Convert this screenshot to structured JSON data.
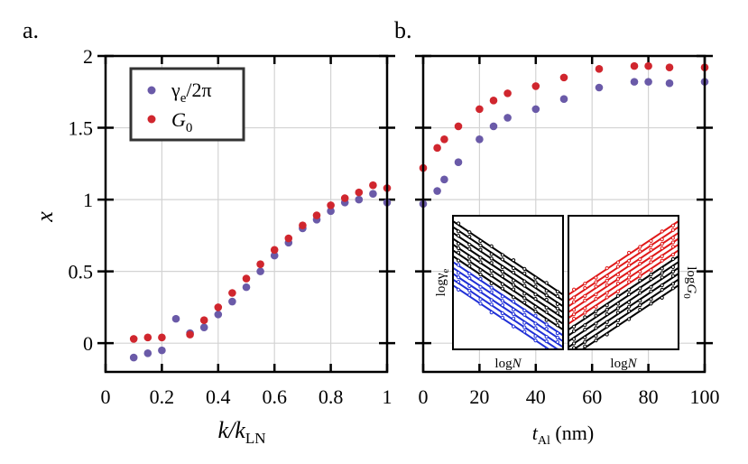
{
  "colors": {
    "gamma": "#6a5aa8",
    "g0": "#d0262e",
    "grid": "#d3d3d3",
    "inset_blue": "#1f2fd6",
    "inset_red": "#e01818"
  },
  "chart_data": [
    {
      "panel": "a.",
      "type": "scatter",
      "xlabel_main": "k/k",
      "xlabel_sub": "LN",
      "ylabel": "x",
      "xlim": [
        0,
        1
      ],
      "ylim": [
        -0.2,
        2
      ],
      "xticks": [
        "0",
        "0.2",
        "0.4",
        "0.6",
        "0.8",
        "1"
      ],
      "xtick_values": [
        0,
        0.2,
        0.4,
        0.6,
        0.8,
        1
      ],
      "yticks": [
        "0",
        "0.5",
        "1",
        "1.5",
        "2"
      ],
      "ytick_values": [
        0,
        0.5,
        1,
        1.5,
        2
      ],
      "grid": true,
      "legend": {
        "position": "top-left",
        "entries": [
          {
            "series": 0,
            "label": "γ",
            "sub": "e",
            "suffix": "/2π"
          },
          {
            "series": 1,
            "label": "G",
            "sub": "0",
            "suffix": ""
          }
        ]
      },
      "series": [
        {
          "name": "γe/2π",
          "x": [
            0.1,
            0.15,
            0.2,
            0.25,
            0.3,
            0.35,
            0.4,
            0.45,
            0.5,
            0.55,
            0.6,
            0.65,
            0.7,
            0.75,
            0.8,
            0.85,
            0.9,
            0.95,
            1.0
          ],
          "y": [
            -0.1,
            -0.07,
            -0.05,
            0.17,
            0.07,
            0.11,
            0.2,
            0.29,
            0.39,
            0.5,
            0.61,
            0.7,
            0.8,
            0.86,
            0.92,
            0.98,
            1.0,
            1.04,
            0.98
          ]
        },
        {
          "name": "G0",
          "x": [
            0.1,
            0.15,
            0.2,
            0.3,
            0.35,
            0.4,
            0.45,
            0.5,
            0.55,
            0.6,
            0.65,
            0.7,
            0.75,
            0.8,
            0.85,
            0.9,
            0.95,
            1.0
          ],
          "y": [
            0.03,
            0.04,
            0.04,
            0.06,
            0.16,
            0.25,
            0.35,
            0.45,
            0.55,
            0.65,
            0.73,
            0.82,
            0.89,
            0.96,
            1.01,
            1.05,
            1.1,
            1.08
          ]
        }
      ]
    },
    {
      "panel": "b.",
      "type": "scatter",
      "xlabel_main": "t",
      "xlabel_sub": "Al",
      "xlabel_unit": " (nm)",
      "xlim": [
        0,
        100
      ],
      "ylim": [
        -0.2,
        2
      ],
      "xticks": [
        "0",
        "20",
        "40",
        "60",
        "80",
        "100"
      ],
      "xtick_values": [
        0,
        20,
        40,
        60,
        80,
        100
      ],
      "ytick_values": [
        0,
        0.5,
        1,
        1.5,
        2
      ],
      "grid": true,
      "series": [
        {
          "name": "γe/2π",
          "x": [
            0,
            5,
            7.5,
            12.5,
            20,
            25,
            30,
            40,
            50,
            62.5,
            75,
            80,
            87.5,
            100
          ],
          "y": [
            0.97,
            1.06,
            1.14,
            1.26,
            1.42,
            1.51,
            1.57,
            1.63,
            1.7,
            1.78,
            1.82,
            1.82,
            1.81,
            1.82
          ]
        },
        {
          "name": "G0",
          "x": [
            0,
            5,
            7.5,
            12.5,
            20,
            25,
            30,
            40,
            50,
            62.5,
            75,
            80,
            87.5,
            100
          ],
          "y": [
            1.22,
            1.36,
            1.42,
            1.51,
            1.63,
            1.69,
            1.74,
            1.79,
            1.85,
            1.91,
            1.93,
            1.93,
            1.92,
            1.92
          ]
        }
      ],
      "insets": [
        {
          "type": "line",
          "xlabel_main": "log",
          "xlabel_var": "N",
          "ylabel_main": "logγ",
          "ylabel_sub": "e",
          "trend": "decreasing",
          "line_count": 12
        },
        {
          "type": "line",
          "xlabel_main": "log",
          "xlabel_var": "N",
          "ylabel_main": "log",
          "ylabel_var": "G",
          "ylabel_sub": "0",
          "trend": "increasing",
          "line_count": 12
        }
      ]
    }
  ]
}
